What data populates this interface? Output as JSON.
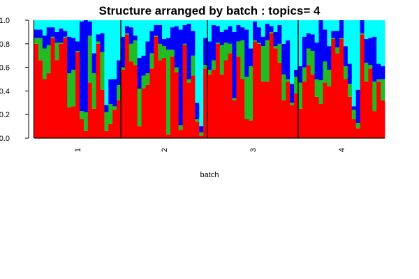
{
  "chart_data": {
    "type": "bar",
    "stacked": true,
    "title": "Structure arranged by batch : topics= 4",
    "xlabel": "batch",
    "ylabel": "",
    "ylim": [
      0,
      1
    ],
    "yticks": [
      "0.0",
      "0.2",
      "0.4",
      "0.6",
      "0.8",
      "1.0"
    ],
    "groups": [
      "1",
      "2",
      "3",
      "4"
    ],
    "series_colors": [
      "#ff0000",
      "#22bb22",
      "#0000ff",
      "#00ffff"
    ],
    "bars": [
      [
        [
          0.8,
          0.05,
          0.07,
          0.08
        ],
        [
          0.66,
          0.19,
          0.07,
          0.08
        ],
        [
          0.5,
          0.26,
          0.11,
          0.13
        ],
        [
          0.55,
          0.24,
          0.15,
          0.06
        ],
        [
          0.85,
          0.01,
          0.08,
          0.06
        ],
        [
          0.66,
          0.15,
          0.09,
          0.1
        ],
        [
          0.8,
          0.01,
          0.12,
          0.07
        ],
        [
          0.85,
          0.01,
          0.05,
          0.09
        ],
        [
          0.26,
          0.29,
          0.31,
          0.14
        ],
        [
          0.27,
          0.31,
          0.27,
          0.15
        ],
        [
          0.73,
          0.01,
          0.08,
          0.18
        ],
        [
          0.16,
          0.07,
          0.76,
          0.01
        ],
        [
          0.06,
          0.16,
          0.78,
          0.0
        ],
        [
          0.47,
          0.4,
          0.12,
          0.01
        ],
        [
          0.25,
          0.3,
          0.17,
          0.28
        ],
        [
          0.8,
          0.02,
          0.06,
          0.12
        ],
        [
          0.41,
          0.32,
          0.16,
          0.11
        ],
        [
          0.06,
          0.16,
          0.06,
          0.72
        ],
        [
          0.12,
          0.17,
          0.21,
          0.5
        ],
        [
          0.24,
          0.03,
          0.23,
          0.5
        ],
        [
          0.32,
          0.13,
          0.21,
          0.34
        ]
      ],
      [
        [
          0.58,
          0.02,
          0.26,
          0.14
        ],
        [
          0.88,
          0.01,
          0.06,
          0.05
        ],
        [
          0.65,
          0.15,
          0.14,
          0.06
        ],
        [
          0.62,
          0.21,
          0.04,
          0.13
        ],
        [
          0.1,
          0.32,
          0.26,
          0.32
        ],
        [
          0.42,
          0.11,
          0.17,
          0.3
        ],
        [
          0.45,
          0.1,
          0.27,
          0.18
        ],
        [
          0.59,
          0.13,
          0.19,
          0.09
        ],
        [
          0.86,
          0.01,
          0.09,
          0.04
        ],
        [
          0.66,
          0.14,
          0.16,
          0.04
        ],
        [
          0.68,
          0.1,
          0.06,
          0.16
        ],
        [
          0.03,
          0.72,
          0.1,
          0.15
        ],
        [
          0.69,
          0.06,
          0.19,
          0.06
        ],
        [
          0.56,
          0.04,
          0.35,
          0.05
        ],
        [
          0.07,
          0.04,
          0.81,
          0.08
        ],
        [
          0.79,
          0.01,
          0.16,
          0.04
        ],
        [
          0.47,
          0.03,
          0.47,
          0.03
        ],
        [
          0.53,
          0.17,
          0.21,
          0.09
        ],
        [
          0.14,
          0.02,
          0.14,
          0.7
        ],
        [
          0.02,
          0.03,
          0.05,
          0.9
        ],
        [
          0.59,
          0.03,
          0.23,
          0.15
        ]
      ],
      [
        [
          0.54,
          0.04,
          0.24,
          0.18
        ],
        [
          0.58,
          0.08,
          0.3,
          0.04
        ],
        [
          0.8,
          0.01,
          0.14,
          0.05
        ],
        [
          0.54,
          0.25,
          0.11,
          0.1
        ],
        [
          0.66,
          0.15,
          0.11,
          0.08
        ],
        [
          0.72,
          0.08,
          0.15,
          0.05
        ],
        [
          0.32,
          0.02,
          0.56,
          0.1
        ],
        [
          0.69,
          0.13,
          0.14,
          0.04
        ],
        [
          0.5,
          0.33,
          0.11,
          0.06
        ],
        [
          0.16,
          0.36,
          0.4,
          0.08
        ],
        [
          0.15,
          0.46,
          0.15,
          0.24
        ],
        [
          0.82,
          0.01,
          0.16,
          0.01
        ],
        [
          0.8,
          0.01,
          0.13,
          0.06
        ],
        [
          0.48,
          0.3,
          0.08,
          0.14
        ],
        [
          0.48,
          0.35,
          0.14,
          0.03
        ],
        [
          0.89,
          0.01,
          0.05,
          0.05
        ],
        [
          0.76,
          0.02,
          0.12,
          0.1
        ],
        [
          0.64,
          0.16,
          0.16,
          0.04
        ],
        [
          0.32,
          0.22,
          0.26,
          0.2
        ],
        [
          0.48,
          0.02,
          0.33,
          0.17
        ],
        [
          0.28,
          0.02,
          0.16,
          0.54
        ],
        [
          0.38,
          0.14,
          0.06,
          0.42
        ]
      ],
      [
        [
          0.25,
          0.22,
          0.14,
          0.39
        ],
        [
          0.48,
          0.12,
          0.26,
          0.14
        ],
        [
          0.62,
          0.14,
          0.13,
          0.11
        ],
        [
          0.54,
          0.2,
          0.14,
          0.12
        ],
        [
          0.35,
          0.15,
          0.31,
          0.19
        ],
        [
          0.29,
          0.2,
          0.51,
          0.0
        ],
        [
          0.47,
          0.18,
          0.27,
          0.08
        ],
        [
          0.44,
          0.14,
          0.2,
          0.22
        ],
        [
          0.84,
          0.01,
          0.06,
          0.09
        ],
        [
          0.72,
          0.05,
          0.14,
          0.09
        ],
        [
          0.84,
          0.01,
          0.15,
          0.0
        ],
        [
          0.5,
          0.11,
          0.17,
          0.22
        ],
        [
          0.35,
          0.11,
          0.17,
          0.37
        ],
        [
          0.16,
          0.08,
          0.03,
          0.73
        ],
        [
          0.08,
          0.05,
          0.28,
          0.59
        ],
        [
          0.88,
          0.01,
          0.11,
          0.0
        ],
        [
          0.48,
          0.16,
          0.2,
          0.16
        ],
        [
          0.59,
          0.03,
          0.23,
          0.15
        ],
        [
          0.23,
          0.25,
          0.38,
          0.14
        ],
        [
          0.48,
          0.02,
          0.13,
          0.37
        ],
        [
          0.32,
          0.18,
          0.11,
          0.39
        ]
      ]
    ]
  }
}
